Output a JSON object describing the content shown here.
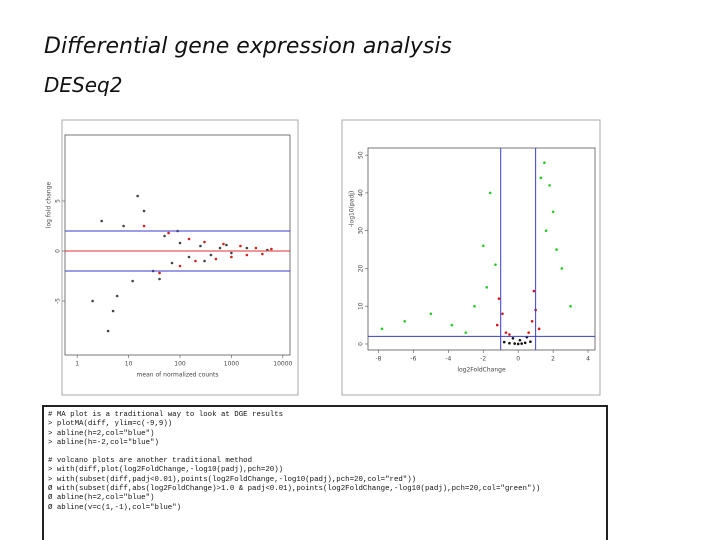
{
  "slide": {
    "title": "Differential gene expression analysis",
    "subtitle": "DESeq2"
  },
  "chart_data": [
    {
      "type": "scatter",
      "xlabel": "mean of normalized counts",
      "ylabel": "log fold change",
      "log_x": true,
      "xlim": [
        0.58,
        13800
      ],
      "ylim": [
        -10.4,
        11.6
      ],
      "xticks": [
        1,
        10,
        100,
        1000,
        10000
      ],
      "yticks": [
        -5,
        0,
        5
      ],
      "hlines": [
        {
          "value": 0,
          "color": "#e03030"
        },
        {
          "value": 2,
          "color": "#3a3ad0"
        },
        {
          "value": -2,
          "color": "#3a3ad0"
        }
      ],
      "series": [
        {
          "color": "#444444",
          "x": [
            2,
            3,
            5,
            8,
            12,
            20,
            30,
            50,
            70,
            100,
            150,
            250,
            400,
            600,
            1000,
            2000,
            5000,
            4,
            6,
            15,
            40,
            90,
            300,
            800
          ],
          "values": [
            -5,
            3,
            -6,
            2.5,
            -3,
            4,
            -2,
            1.5,
            -1.2,
            0.8,
            -0.6,
            0.5,
            -0.4,
            0.3,
            -0.2,
            0.3,
            0.1,
            -8,
            -4.5,
            5.5,
            -2.8,
            2,
            -1,
            0.6
          ]
        },
        {
          "color": "#d02020",
          "x": [
            20,
            40,
            60,
            100,
            150,
            200,
            300,
            500,
            700,
            1000,
            1500,
            2000,
            3000,
            4000,
            6000
          ],
          "values": [
            2.5,
            -2.2,
            1.8,
            -1.5,
            1.2,
            -1,
            0.9,
            -0.8,
            0.7,
            -0.6,
            0.5,
            -0.4,
            0.3,
            -0.3,
            0.2
          ]
        }
      ]
    },
    {
      "type": "scatter",
      "xlabel": "log2FoldChange",
      "ylabel": "-log10(padj)",
      "xlim": [
        -8.6,
        4.4
      ],
      "ylim": [
        -1.6,
        51.9
      ],
      "xticks": [
        -8,
        -6,
        -4,
        -2,
        0,
        2,
        4
      ],
      "yticks": [
        0,
        10,
        20,
        30,
        40,
        50
      ],
      "hlines": [
        {
          "value": 2,
          "color": "#3a3ad0"
        }
      ],
      "vlines": [
        {
          "value": -1,
          "color": "#3a3ad0"
        },
        {
          "value": 1,
          "color": "#3a3ad0"
        }
      ],
      "series": [
        {
          "color": "#111111",
          "x": [
            -0.8,
            -0.5,
            -0.2,
            0,
            0.2,
            0.4,
            0.7,
            -0.3,
            0.1,
            0.5
          ],
          "values": [
            0.5,
            0.2,
            0.1,
            0,
            0.1,
            0.3,
            0.6,
            1.5,
            1,
            1.8
          ]
        },
        {
          "color": "#e01010",
          "x": [
            -1.2,
            -0.9,
            -0.7,
            -0.5,
            0.6,
            0.8,
            1.0,
            1.2,
            -1.1,
            0.9
          ],
          "values": [
            5,
            8,
            3,
            2.5,
            3,
            6,
            9,
            4,
            12,
            14
          ]
        },
        {
          "color": "#22cc22",
          "x": [
            -7.8,
            -6.5,
            -5,
            -3.8,
            -3,
            -2.5,
            -2,
            -1.6,
            1.5,
            1.8,
            2,
            2.2,
            2.5,
            3,
            1.3,
            1.6,
            -1.8,
            -1.3
          ],
          "values": [
            4,
            6,
            8,
            5,
            3,
            10,
            26,
            40,
            48,
            42,
            35,
            25,
            20,
            10,
            44,
            30,
            15,
            21
          ]
        }
      ]
    }
  ],
  "code": {
    "blocks": [
      [
        "# MA plot is a traditional way to look at DGE results",
        "> plotMA(diff, ylim=c(-9,9))",
        "> abline(h=2,col=\"blue\")",
        "> abline(h=-2,col=\"blue\")"
      ],
      [
        "# volcano plots are another traditional method",
        "> with(diff,plot(log2FoldChange,-log10(padj),pch=20))",
        "> with(subset(diff,padj<0.01),points(log2FoldChange,-log10(padj),pch=20,col=\"red\"))",
        "Ø with(subset(diff,abs(log2FoldChange)>1.0 & padj<0.01),points(log2FoldChange,-log10(padj),pch=20,col=\"green\"))",
        "Ø abline(h=2,col=\"blue\")",
        "Ø abline(v=c(1,-1),col=\"blue\")"
      ]
    ]
  }
}
